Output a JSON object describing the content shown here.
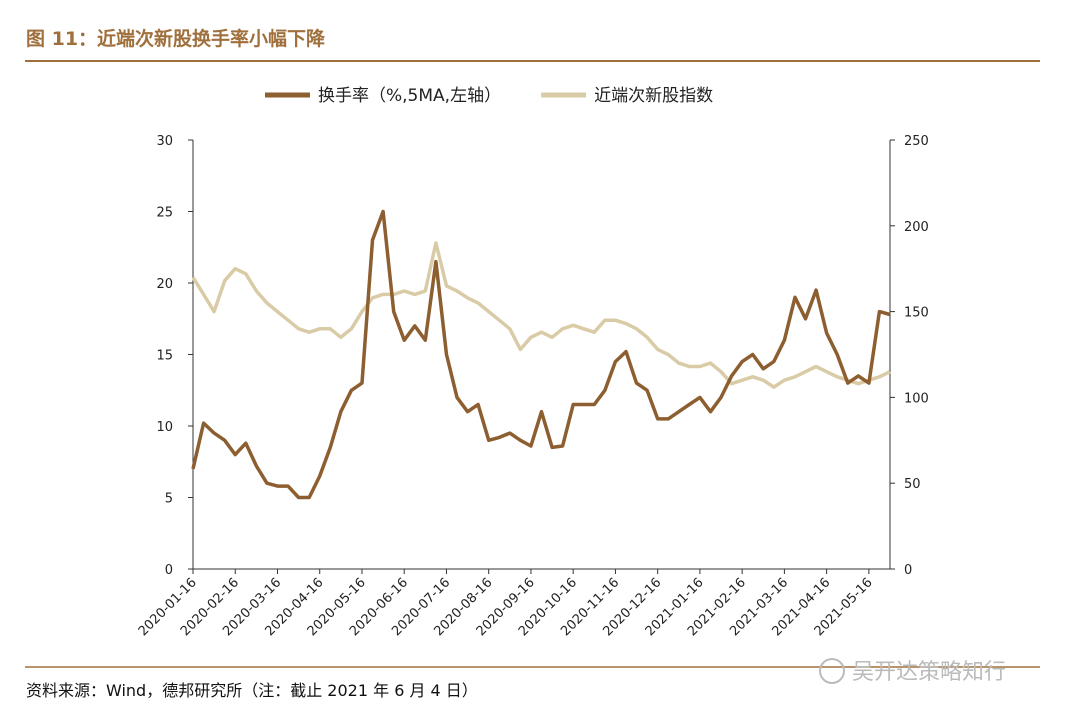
{
  "chart_data": {
    "type": "line",
    "title": "图 11：近端次新股换手率小幅下降",
    "source": "资料来源：Wind，德邦研究所（注：截止 2021 年 6 月 4 日）",
    "watermark": "吴开达策略知行",
    "categories": [
      "2020-01-16",
      null,
      null,
      null,
      "2020-02-16",
      null,
      null,
      null,
      "2020-03-16",
      null,
      null,
      null,
      "2020-04-16",
      null,
      null,
      null,
      "2020-05-16",
      null,
      null,
      null,
      "2020-06-16",
      null,
      null,
      null,
      "2020-07-16",
      null,
      null,
      null,
      "2020-08-16",
      null,
      null,
      null,
      "2020-09-16",
      null,
      null,
      null,
      "2020-10-16",
      null,
      null,
      null,
      "2020-11-16",
      null,
      null,
      null,
      "2020-12-16",
      null,
      null,
      null,
      "2021-01-16",
      null,
      null,
      null,
      "2021-02-16",
      null,
      null,
      null,
      "2021-03-16",
      null,
      null,
      null,
      "2021-04-16",
      null,
      null,
      null,
      "2021-05-16",
      null,
      null
    ],
    "series": [
      {
        "name": "换手率（%,5MA,左轴）",
        "color": "#8c5e30",
        "axis": "y",
        "values": [
          7,
          10.2,
          9.5,
          9,
          8,
          8.8,
          7.2,
          6,
          5.8,
          5.8,
          5,
          5,
          6.5,
          8.5,
          11,
          12.5,
          13,
          23,
          25,
          18,
          16,
          17,
          16,
          21.5,
          15,
          12,
          11,
          11.5,
          9,
          9.2,
          9.5,
          9,
          8.6,
          11,
          8.5,
          8.6,
          11.5,
          11.5,
          11.5,
          12.5,
          14.5,
          15.2,
          13,
          12.5,
          10.5,
          10.5,
          11,
          11.5,
          12,
          11,
          12,
          13.5,
          14.5,
          15,
          14,
          14.5,
          16,
          19,
          17.5,
          19.5,
          16.5,
          15,
          13,
          13.5,
          13,
          18,
          17.8
        ]
      },
      {
        "name": "近端次新股指数",
        "color": "#d9cba6",
        "axis": "y2",
        "values": [
          170,
          160,
          150,
          168,
          175,
          172,
          162,
          155,
          150,
          145,
          140,
          138,
          140,
          140,
          135,
          140,
          150,
          158,
          160,
          160,
          162,
          160,
          162,
          190,
          165,
          162,
          158,
          155,
          150,
          145,
          140,
          128,
          135,
          138,
          135,
          140,
          142,
          140,
          138,
          145,
          145,
          143,
          140,
          135,
          128,
          125,
          120,
          118,
          118,
          120,
          115,
          108,
          110,
          112,
          110,
          106,
          110,
          112,
          115,
          118,
          115,
          112,
          110,
          108,
          110,
          112,
          115
        ]
      }
    ],
    "ylim": [
      0,
      30
    ],
    "yticks": [
      0,
      5,
      10,
      15,
      20,
      25,
      30
    ],
    "y2lim": [
      0,
      250
    ],
    "y2ticks": [
      0,
      50,
      100,
      150,
      200,
      250
    ]
  }
}
